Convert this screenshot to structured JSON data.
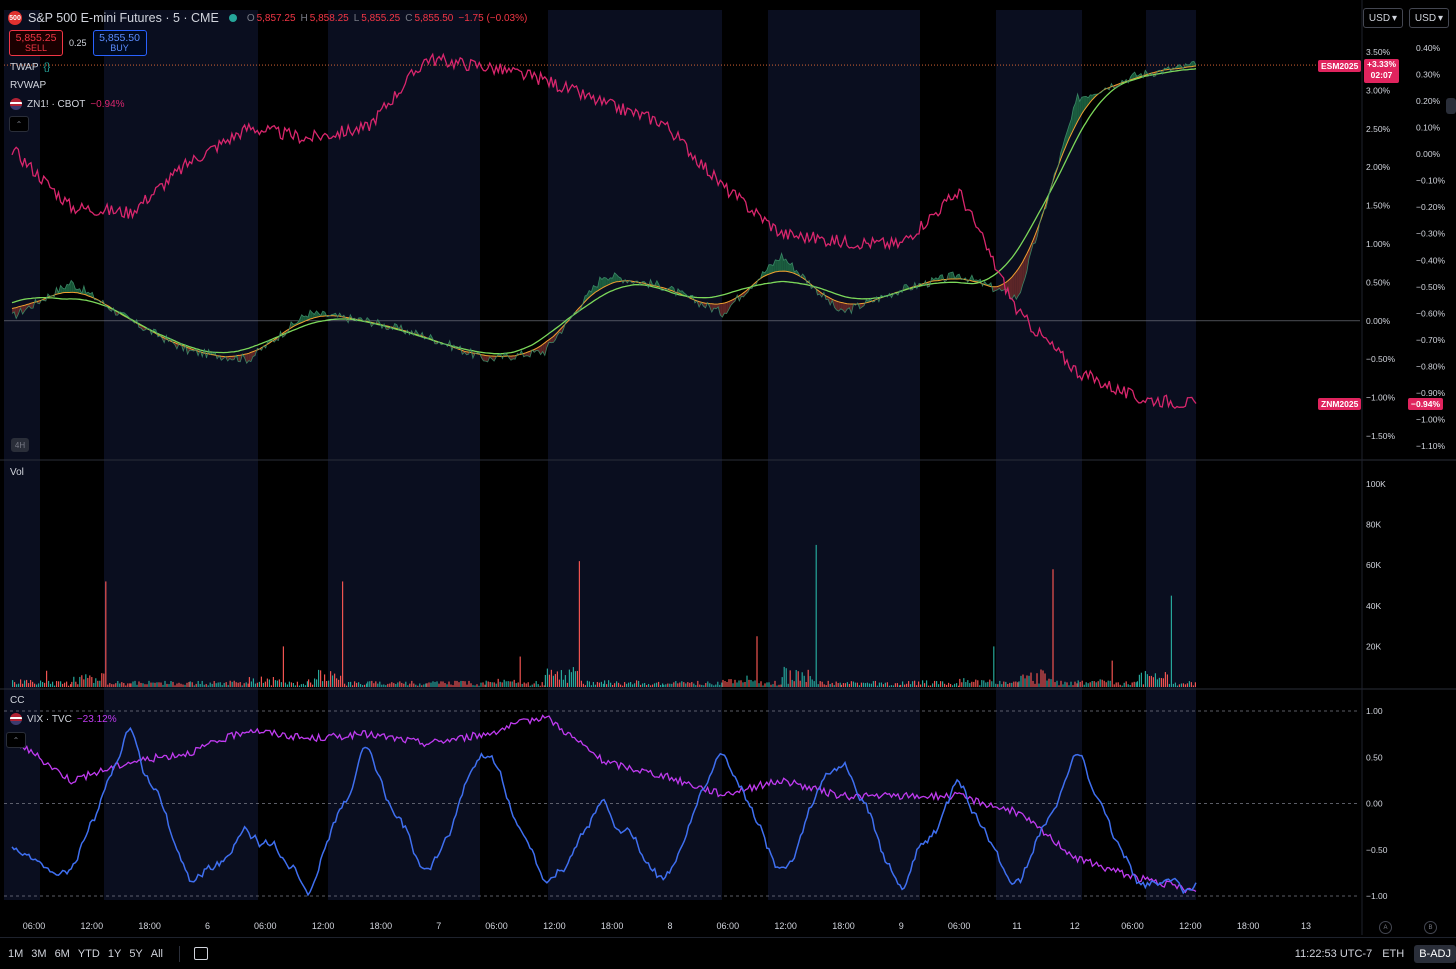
{
  "header": {
    "symbol_icon": "500",
    "title": "S&P 500 E-mini Futures · 5 · CME",
    "ohlc": [
      {
        "k": "O",
        "v": "5,857.25"
      },
      {
        "k": "H",
        "v": "5,858.25"
      },
      {
        "k": "L",
        "v": "5,855.25"
      },
      {
        "k": "C",
        "v": "5,855.50"
      }
    ],
    "change": "−1.75 (−0.03%)"
  },
  "trade": {
    "sell_price": "5,855.25",
    "sell_label": "SELL",
    "spread": "0.25",
    "buy_price": "5,855.50",
    "buy_label": "BUY"
  },
  "indicators": {
    "twap": "TWAP",
    "twap_icon": "{}",
    "rvwap": "RVWAP",
    "zn": "ZN1! · CBOT",
    "zn_change": "−0.94%",
    "vix": "VIX · TVC",
    "vix_change": "−23.12%"
  },
  "currency": {
    "left": "USD",
    "right": "USD"
  },
  "interval_badge": "4H",
  "pane_labels": {
    "vol": "Vol",
    "cc": "CC"
  },
  "tags": {
    "esm": "ESM2025",
    "esm_value": "+3.33%",
    "esm_time": "02:07",
    "znm": "ZNM2025",
    "znm_value": "−0.94%"
  },
  "axes": {
    "es_pct": [
      "3.50%",
      "3.00%",
      "2.50%",
      "2.00%",
      "1.50%",
      "1.00%",
      "0.50%",
      "0.00%",
      "−0.50%",
      "−1.00%",
      "−1.50%"
    ],
    "zn_pct": [
      "0.40%",
      "0.30%",
      "0.20%",
      "0.10%",
      "0.00%",
      "−0.10%",
      "−0.20%",
      "−0.30%",
      "−0.40%",
      "−0.50%",
      "−0.60%",
      "−0.70%",
      "−0.80%",
      "−0.90%",
      "−1.00%",
      "−1.10%"
    ],
    "vol": [
      "100K",
      "80K",
      "60K",
      "40K",
      "20K"
    ],
    "cc": [
      "1.00",
      "0.50",
      "0.00",
      "−0.50",
      "−1.00"
    ],
    "time": [
      "06:00",
      "12:00",
      "18:00",
      "6",
      "06:00",
      "12:00",
      "18:00",
      "7",
      "06:00",
      "12:00",
      "18:00",
      "8",
      "06:00",
      "12:00",
      "18:00",
      "9",
      "06:00",
      "11",
      "12",
      "06:00",
      "12:00",
      "18:00",
      "13"
    ],
    "circles": [
      "A",
      "B"
    ]
  },
  "bottom": {
    "ranges": [
      "1M",
      "3M",
      "6M",
      "YTD",
      "1Y",
      "5Y",
      "All"
    ],
    "clock": "11:22:53 UTC-7",
    "eth": "ETH",
    "badj": "B-ADJ"
  },
  "colors": {
    "es_up": "#26a69a",
    "es_down": "#ef5350",
    "zn": "#d9266d",
    "vix": "#c03bf0",
    "cc": "#3f6ff0",
    "twap": "#f0a030",
    "rvwap": "#7cd85a"
  },
  "chart_data": [
    {
      "type": "line",
      "title": "S&P 500 E-mini Futures · 5 · CME",
      "x": [
        "06:00",
        "12:00",
        "18:00",
        "6",
        "06:00",
        "12:00",
        "18:00",
        "7",
        "06:00",
        "12:00",
        "18:00",
        "8",
        "06:00",
        "12:00",
        "18:00",
        "9",
        "06:00",
        "11",
        "12",
        "06:00",
        "12:00"
      ],
      "series": [
        {
          "name": "ESM2025",
          "values": [
            0.05,
            0.5,
            0.0,
            -0.4,
            -0.5,
            0.1,
            0.0,
            -0.2,
            -0.5,
            -0.4,
            0.6,
            0.45,
            0.1,
            0.85,
            0.1,
            0.4,
            0.6,
            0.3,
            2.9,
            3.2,
            3.33
          ]
        },
        {
          "name": "ZN1! · CBOT",
          "values": [
            0.02,
            -0.2,
            -0.22,
            -0.03,
            0.1,
            0.06,
            0.1,
            0.36,
            0.33,
            0.28,
            0.19,
            0.12,
            -0.12,
            -0.3,
            -0.33,
            -0.34,
            -0.14,
            -0.6,
            -0.82,
            -0.92,
            -0.94
          ]
        }
      ],
      "ylim": [
        -1.5,
        3.5
      ],
      "grid": true
    },
    {
      "type": "bar",
      "title": "Vol",
      "ylim": [
        0,
        100000
      ],
      "categories": [
        "06:00",
        "12:00",
        "18:00",
        "6",
        "06:00",
        "12:00",
        "18:00",
        "7",
        "06:00",
        "12:00",
        "18:00",
        "8",
        "06:00",
        "12:00",
        "18:00",
        "9",
        "06:00",
        "11",
        "12",
        "06:00",
        "12:00"
      ],
      "values": [
        8000,
        52000,
        3000,
        2000,
        20000,
        52000,
        2000,
        3000,
        15000,
        62000,
        3000,
        3000,
        25000,
        70000,
        3000,
        3000,
        20000,
        58000,
        13000,
        45000,
        12000
      ]
    },
    {
      "type": "line",
      "title": "CC",
      "ylim": [
        -1,
        1
      ],
      "series": [
        {
          "name": "VIX · TVC",
          "values": [
            0.7,
            0.25,
            0.45,
            0.55,
            0.8,
            0.7,
            0.75,
            0.65,
            0.75,
            0.95,
            0.45,
            0.3,
            0.1,
            0.25,
            0.08,
            0.08,
            0.08,
            -0.1,
            -0.6,
            -0.8,
            -0.95
          ]
        },
        {
          "name": "CC",
          "values": [
            -0.5,
            -0.7,
            0.8,
            -0.9,
            -0.3,
            -0.9,
            0.6,
            -0.85,
            0.7,
            -0.95,
            0.0,
            -0.9,
            0.6,
            -0.75,
            0.6,
            -0.9,
            0.2,
            -0.95,
            0.55,
            -0.85,
            -0.9
          ]
        }
      ]
    }
  ]
}
